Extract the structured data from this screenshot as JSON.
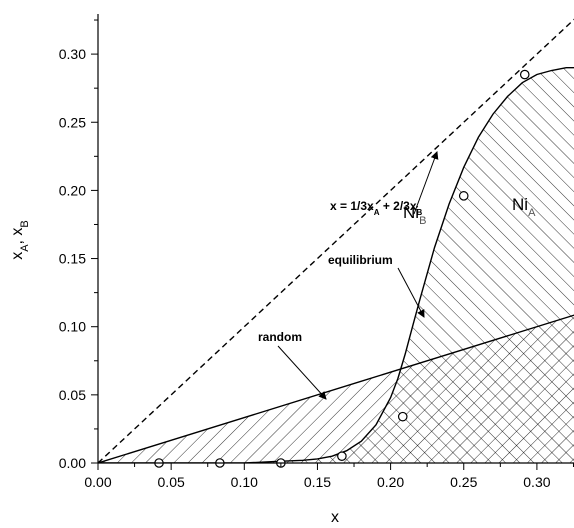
{
  "chart_data": {
    "type": "line",
    "xlabel": "x",
    "ylabel": "x_A, x_B",
    "xlim": [
      0.0,
      0.33
    ],
    "ylim": [
      0.0,
      0.33
    ],
    "x_ticks": [
      "0.00",
      "0.05",
      "0.10",
      "0.15",
      "0.20",
      "0.25",
      "0.30"
    ],
    "y_ticks": [
      "0.00",
      "0.05",
      "0.10",
      "0.15",
      "0.20",
      "0.25",
      "0.30"
    ],
    "grid": false,
    "colors": {
      "line": "#000000",
      "hatch": "#000000",
      "background": "#ffffff"
    },
    "series": [
      {
        "style": "dashed",
        "x": [
          0.0,
          0.33
        ],
        "y": [
          0.0,
          0.33
        ]
      },
      {
        "style": "solid",
        "x": [
          0.0,
          0.33
        ],
        "y": [
          0.0,
          0.11
        ]
      },
      {
        "style": "solid",
        "x": [
          0.0,
          0.1,
          0.12,
          0.14,
          0.15,
          0.16,
          0.17,
          0.18,
          0.19,
          0.2,
          0.205,
          0.21,
          0.215,
          0.22,
          0.23,
          0.24,
          0.25,
          0.26,
          0.27,
          0.28,
          0.29,
          0.3,
          0.31,
          0.32,
          0.325,
          0.33
        ],
        "y": [
          0.0,
          0.0,
          0.001,
          0.002,
          0.003,
          0.005,
          0.009,
          0.016,
          0.028,
          0.048,
          0.062,
          0.08,
          0.1,
          0.12,
          0.158,
          0.19,
          0.217,
          0.239,
          0.256,
          0.269,
          0.279,
          0.285,
          0.288,
          0.29,
          0.29,
          0.29
        ]
      },
      {
        "style": "markers",
        "x": [
          0.0417,
          0.0833,
          0.125,
          0.1667,
          0.2083,
          0.25,
          0.2917
        ],
        "y": [
          0.0,
          0.0,
          0.0,
          0.005,
          0.034,
          0.196,
          0.285
        ]
      }
    ],
    "annotations": {
      "dashed_label": "x = 1/3x_A + 2/3x_B",
      "equilibrium_label": "equilibrium",
      "random_label": "random",
      "region_b": {
        "main": "Ni",
        "sub": "B"
      },
      "region_a": {
        "main": "Ni",
        "sub": "A"
      }
    }
  }
}
